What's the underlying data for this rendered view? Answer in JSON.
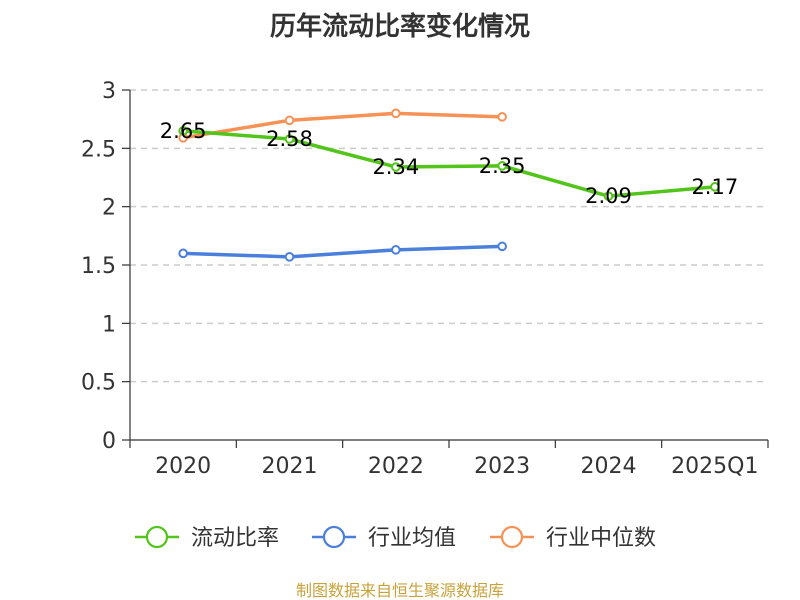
{
  "chart_data": {
    "type": "line",
    "title": "历年流动比率变化情况",
    "categories": [
      "2020",
      "2021",
      "2022",
      "2023",
      "2024",
      "2025Q1"
    ],
    "xlabel": "",
    "ylabel": "",
    "ylim": [
      0,
      3
    ],
    "yticks": [
      "0",
      "0.5",
      "1",
      "1.5",
      "2",
      "2.5",
      "3"
    ],
    "grid": true,
    "legend_position": "bottom",
    "series": [
      {
        "name": "流动比率",
        "color": "#52c41a",
        "values": [
          2.65,
          2.58,
          2.34,
          2.35,
          2.09,
          2.17
        ],
        "labels": [
          "2.65",
          "2.58",
          "2.34",
          "2.35",
          "2.09",
          "2.17"
        ],
        "show_labels": true
      },
      {
        "name": "行业均值",
        "color": "#4a7fdc",
        "values": [
          1.6,
          1.57,
          1.63,
          1.66,
          null,
          null
        ],
        "show_labels": false
      },
      {
        "name": "行业中位数",
        "color": "#f79256",
        "values": [
          2.59,
          2.74,
          2.8,
          2.77,
          null,
          null
        ],
        "show_labels": false
      }
    ],
    "source": "制图数据来自恒生聚源数据库"
  }
}
